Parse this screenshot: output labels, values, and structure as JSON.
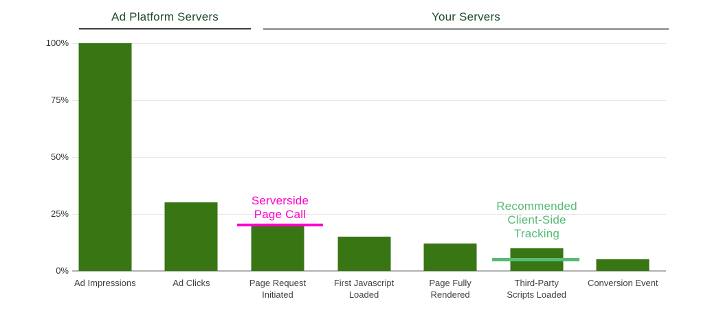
{
  "chart_data": {
    "type": "bar",
    "title": "",
    "group_headers": [
      "Ad Platform Servers",
      "Your Servers"
    ],
    "group_header_spans": [
      [
        "Ad Impressions",
        "Ad Clicks"
      ],
      [
        "Page Request Initiated",
        "First Javascript Loaded",
        "Page Fully Rendered",
        "Third-Party Scripts Loaded",
        "Conversion Event"
      ]
    ],
    "categories": [
      "Ad Impressions",
      "Ad Clicks",
      "Page Request\nInitiated",
      "First Javascript\nLoaded",
      "Page Fully\nRendered",
      "Third-Party\nScripts Loaded",
      "Conversion Event"
    ],
    "values": [
      100,
      30,
      20,
      15,
      12,
      10,
      5
    ],
    "unit": "%",
    "xlabel": "",
    "ylabel": "",
    "yticks": [
      "0%",
      "25%",
      "50%",
      "75%",
      "100%"
    ],
    "ylim": [
      0,
      100
    ],
    "grid": true,
    "legend": "none",
    "bar_color": "#377613",
    "header_color": "#1e4d2b",
    "annotations": [
      {
        "text": "Serverside\nPage Call",
        "color": "#ff00cc",
        "attached_to": "Page Request Initiated",
        "line_value": 20
      },
      {
        "text": "Recommended\nClient-Side\nTracking",
        "color": "#55bb75",
        "attached_to": "Third-Party Scripts Loaded",
        "line_value": 5
      }
    ]
  }
}
